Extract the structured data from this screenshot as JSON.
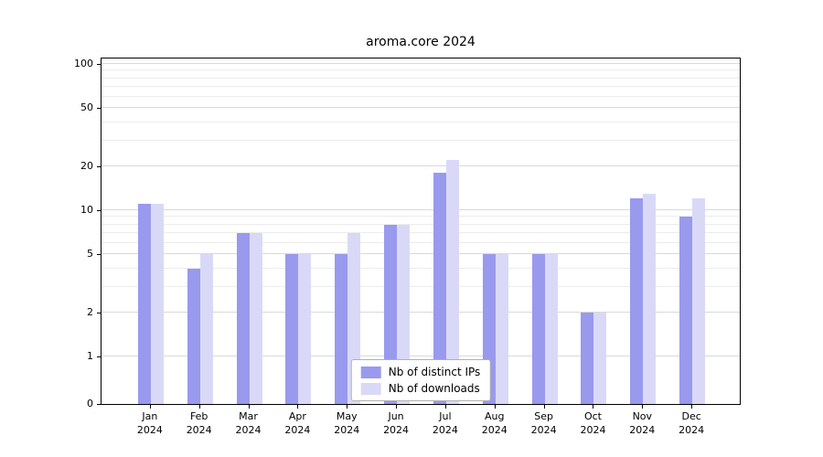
{
  "chart_data": {
    "type": "bar",
    "title": "aroma.core 2024",
    "categories": [
      "Jan",
      "Feb",
      "Mar",
      "Apr",
      "May",
      "Jun",
      "Jul",
      "Aug",
      "Sep",
      "Oct",
      "Nov",
      "Dec"
    ],
    "year": "2024",
    "series": [
      {
        "name": "Nb of distinct IPs",
        "color": "#9999ee",
        "values": [
          11,
          4,
          7,
          5,
          5,
          8,
          18,
          5,
          5,
          2,
          12,
          9
        ]
      },
      {
        "name": "Nb of downloads",
        "color": "#d9d9f7",
        "values": [
          11,
          5,
          7,
          5,
          7,
          8,
          22,
          5,
          5,
          2,
          13,
          12
        ]
      }
    ],
    "yticks": [
      0,
      1,
      2,
      5,
      10,
      20,
      50,
      100
    ],
    "minor_gridlines": [
      3,
      4,
      6,
      7,
      8,
      9,
      30,
      40,
      60,
      70,
      80,
      90
    ],
    "ylim": [
      0,
      100
    ],
    "scale": "symlog",
    "grid": true,
    "legend_position": "bottom-center"
  }
}
